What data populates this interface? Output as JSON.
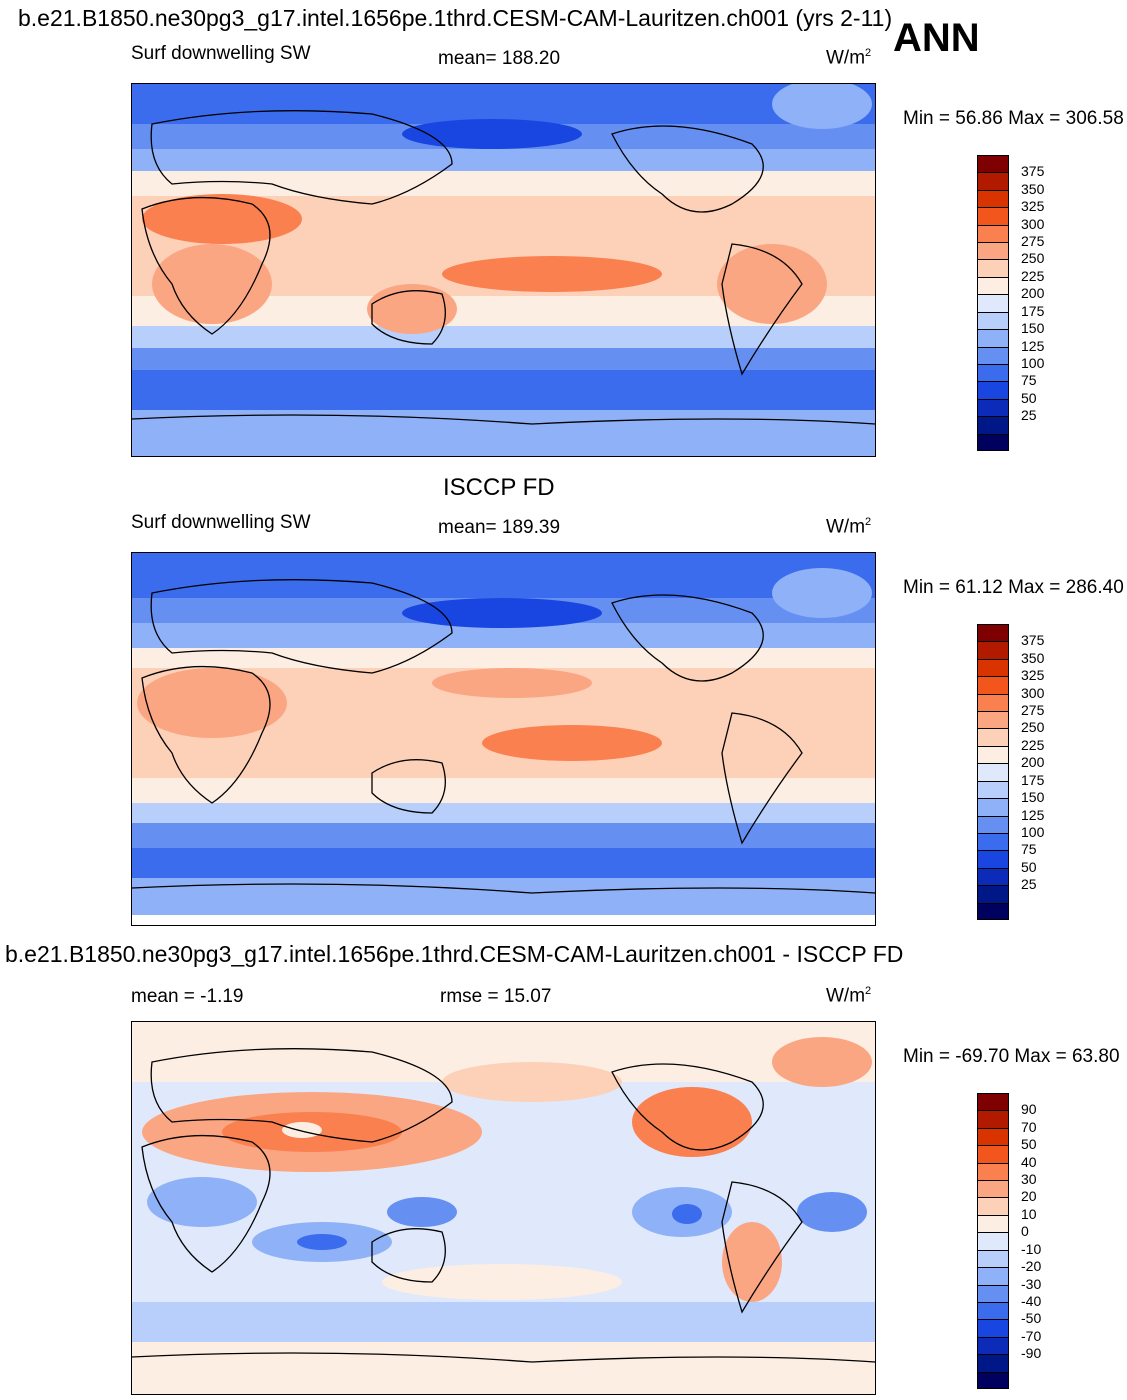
{
  "figure": {
    "title": "b.e21.B1850.ne30pg3_g17.intel.1656pe.1thrd.CESM-CAM-Lauritzen.ch001 (yrs 2-11)",
    "season": "ANN"
  },
  "panels": [
    {
      "id": "model",
      "header": "",
      "left_label": "Surf downwelling SW",
      "center_label": "mean= 188.20",
      "units": "W/m",
      "units_sup": "2",
      "minmax": "Min =  56.86 Max = 306.58"
    },
    {
      "id": "obs",
      "header": "ISCCP FD",
      "left_label": "Surf downwelling SW",
      "center_label": "mean= 189.39",
      "units": "W/m",
      "units_sup": "2",
      "minmax": "Min =  61.12 Max = 286.40"
    },
    {
      "id": "diff",
      "header": "b.e21.B1850.ne30pg3_g17.intel.1656pe.1thrd.CESM-CAM-Lauritzen.ch001 - ISCCP FD",
      "left_label": "mean =  -1.19",
      "center_label": "rmse =  15.07",
      "units": "W/m",
      "units_sup": "2",
      "minmax": "Min = -69.70 Max =  63.80"
    }
  ],
  "chart_data": [
    {
      "type": "heatmap",
      "title": "Surf downwelling SW",
      "subtitle": "mean= 188.20",
      "units": "W/m2",
      "min": 56.86,
      "max": 306.58,
      "colorbar_levels": [
        375,
        350,
        325,
        300,
        275,
        250,
        225,
        200,
        175,
        150,
        125,
        100,
        75,
        50,
        25
      ],
      "colorbar_colors": [
        "#7f0000",
        "#b21a00",
        "#d93300",
        "#f2561d",
        "#fa8050",
        "#fba683",
        "#fdd0b8",
        "#fdeee3",
        "#dfe9fb",
        "#b8cffb",
        "#8fb1f8",
        "#6590f2",
        "#3b6cee",
        "#1946e0",
        "#0b2bb8",
        "#001887",
        "#00005f"
      ]
    },
    {
      "type": "heatmap",
      "title": "Surf downwelling SW",
      "subtitle": "mean= 189.39",
      "units": "W/m2",
      "min": 61.12,
      "max": 286.4,
      "colorbar_levels": [
        375,
        350,
        325,
        300,
        275,
        250,
        225,
        200,
        175,
        150,
        125,
        100,
        75,
        50,
        25
      ],
      "colorbar_colors": [
        "#7f0000",
        "#b21a00",
        "#d93300",
        "#f2561d",
        "#fa8050",
        "#fba683",
        "#fdd0b8",
        "#fdeee3",
        "#dfe9fb",
        "#b8cffb",
        "#8fb1f8",
        "#6590f2",
        "#3b6cee",
        "#1946e0",
        "#0b2bb8",
        "#001887",
        "#00005f"
      ]
    },
    {
      "type": "heatmap",
      "title": "b.e21.B1850.ne30pg3_g17.intel.1656pe.1thrd.CESM-CAM-Lauritzen.ch001 - ISCCP FD",
      "subtitle": "mean =  -1.19  rmse =  15.07",
      "units": "W/m2",
      "min": -69.7,
      "max": 63.8,
      "colorbar_levels": [
        90,
        70,
        50,
        40,
        30,
        20,
        10,
        0,
        -10,
        -20,
        -30,
        -40,
        -50,
        -70,
        -90
      ],
      "colorbar_colors": [
        "#7f0000",
        "#b21a00",
        "#d93300",
        "#f2561d",
        "#fa8050",
        "#fba683",
        "#fdd0b8",
        "#fdeee3",
        "#dfe9fb",
        "#b8cffb",
        "#8fb1f8",
        "#6590f2",
        "#3b6cee",
        "#1946e0",
        "#0b2bb8",
        "#001887",
        "#00005f"
      ]
    }
  ]
}
